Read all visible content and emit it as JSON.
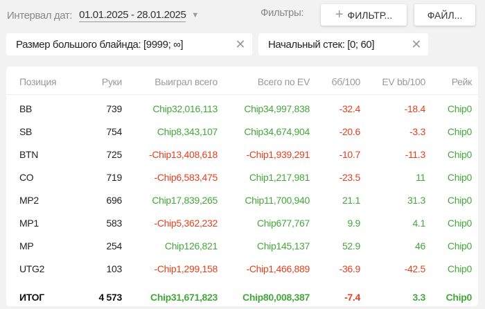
{
  "toolbar": {
    "date_label": "Интервал дат:",
    "date_value": "01.01.2025 - 28.01.2025",
    "filters_label": "Фильтры:",
    "add_filter": "ФИЛЬТР...",
    "file": "ФАЙЛ..."
  },
  "chips": [
    {
      "label": "Размер большого блайнда: [9999; ∞]"
    },
    {
      "label": "Начальный стек: [0; 60]"
    }
  ],
  "colors": {
    "positive": "#43a83a",
    "negative": "#e4401e"
  },
  "table": {
    "headers": [
      "Позиция",
      "Руки",
      "Выиграл всего",
      "Всего по EV",
      "бб/100",
      "EV bb/100",
      "Рейк"
    ],
    "rows": [
      [
        "BB",
        "739",
        "Chip32,016,113",
        "Chip34,997,838",
        "-32.4",
        "-18.4",
        "Chip0"
      ],
      [
        "SB",
        "754",
        "Chip8,343,107",
        "Chip34,674,904",
        "-20.6",
        "-3.3",
        "Chip0"
      ],
      [
        "BTN",
        "725",
        "-Chip13,408,618",
        "-Chip1,939,291",
        "-10.7",
        "-11.3",
        "Chip0"
      ],
      [
        "CO",
        "719",
        "-Chip6,583,475",
        "Chip1,217,981",
        "-23.5",
        "11",
        "Chip0"
      ],
      [
        "MP2",
        "696",
        "Chip17,839,265",
        "Chip11,700,940",
        "21.1",
        "31.3",
        "Chip0"
      ],
      [
        "MP1",
        "583",
        "-Chip5,362,232",
        "Chip677,767",
        "9.9",
        "4.1",
        "Chip0"
      ],
      [
        "MP",
        "254",
        "Chip126,821",
        "Chip145,137",
        "52.9",
        "46",
        "Chip0"
      ],
      [
        "UTG2",
        "103",
        "-Chip1,299,158",
        "-Chip1,466,889",
        "-36.9",
        "-42.5",
        "Chip0"
      ]
    ],
    "total": [
      "ИТОГ",
      "4 573",
      "Chip31,671,823",
      "Chip80,008,387",
      "-7.4",
      "3.3",
      "Chip0"
    ]
  }
}
